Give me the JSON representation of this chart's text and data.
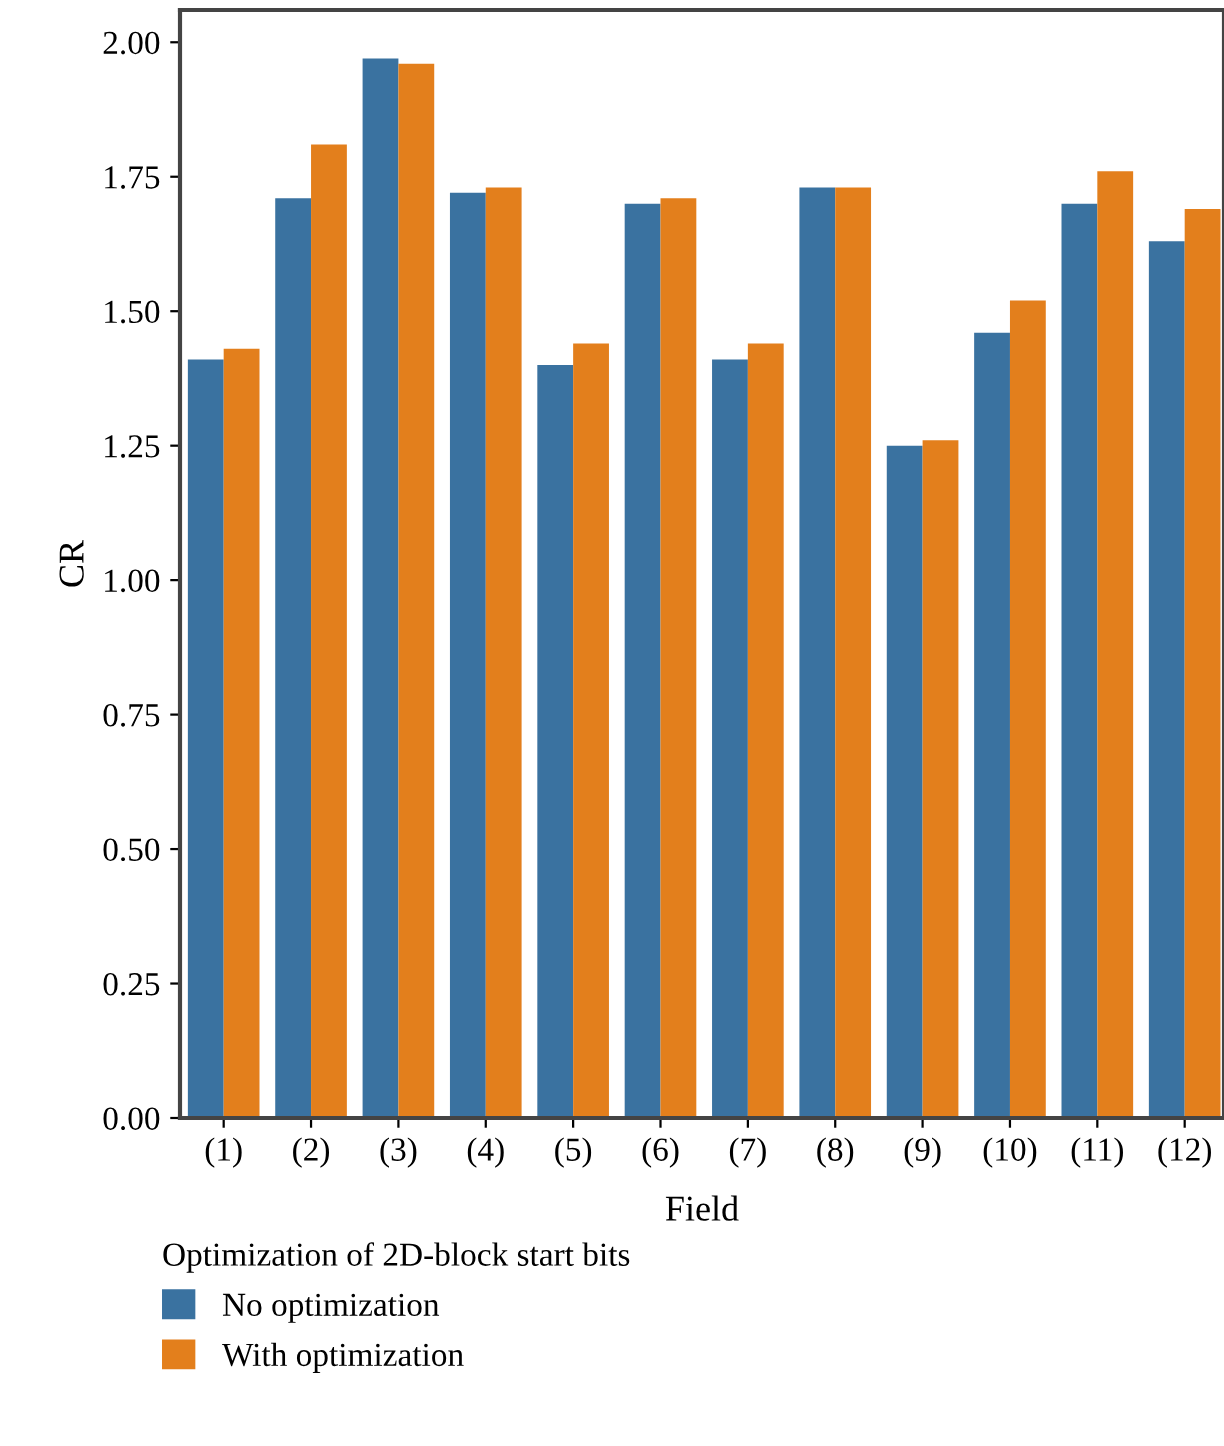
{
  "chart_data": {
    "type": "bar",
    "xlabel": "Field",
    "ylabel": "CR",
    "legend_title": "Optimization of 2D-block start bits",
    "categories": [
      "(1)",
      "(2)",
      "(3)",
      "(4)",
      "(5)",
      "(6)",
      "(7)",
      "(8)",
      "(9)",
      "(10)",
      "(11)",
      "(12)"
    ],
    "series": [
      {
        "name": "No optimization",
        "color": "#3a72a0",
        "values": [
          1.41,
          1.71,
          1.97,
          1.72,
          1.4,
          1.7,
          1.41,
          1.73,
          1.25,
          1.46,
          1.7,
          1.63
        ]
      },
      {
        "name": "With optimization",
        "color": "#e37f1c",
        "values": [
          1.43,
          1.81,
          1.96,
          1.73,
          1.44,
          1.71,
          1.44,
          1.73,
          1.26,
          1.52,
          1.76,
          1.69
        ]
      }
    ],
    "ylim": [
      0,
      2.06
    ],
    "yticks": [
      {
        "value": 0,
        "label": "0.00"
      },
      {
        "value": 0.25,
        "label": "0.25"
      },
      {
        "value": 0.5,
        "label": "0.50"
      },
      {
        "value": 0.75,
        "label": "0.75"
      },
      {
        "value": 1.0,
        "label": "1.00"
      },
      {
        "value": 1.25,
        "label": "1.25"
      },
      {
        "value": 1.5,
        "label": "1.50"
      },
      {
        "value": 1.75,
        "label": "1.75"
      },
      {
        "value": 2.0,
        "label": "2.00"
      }
    ],
    "grid": false,
    "legend": "bottom"
  }
}
